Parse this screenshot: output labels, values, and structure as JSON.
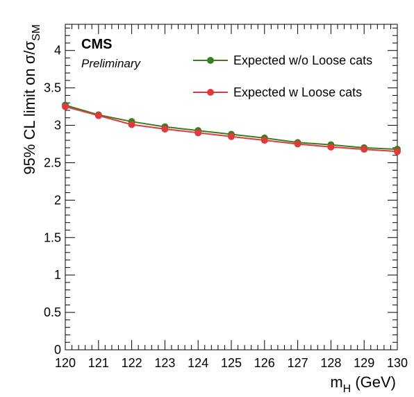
{
  "chart_data": {
    "type": "line",
    "experiment_label": "CMS",
    "status_label": "Preliminary",
    "xlabel": "m",
    "xlabel_sub": "H",
    "xlabel_unit": " (GeV)",
    "ylabel": "95% CL limit on  σ/σ",
    "ylabel_sub": "SM",
    "xlim": [
      120,
      130
    ],
    "ylim": [
      0,
      4.35
    ],
    "x_ticks": [
      120,
      121,
      122,
      123,
      124,
      125,
      126,
      127,
      128,
      129,
      130
    ],
    "y_ticks": [
      0,
      0.5,
      1,
      1.5,
      2,
      2.5,
      3,
      3.5,
      4
    ],
    "x_minor_step": 0.2,
    "y_minor_step": 0.1,
    "grid": false,
    "legend_position": "top-right",
    "x": [
      120,
      121,
      122,
      123,
      124,
      125,
      126,
      127,
      128,
      129,
      130
    ],
    "series": [
      {
        "name": "Expected w/o Loose cats",
        "color": "#3a7d1e",
        "values": [
          3.27,
          3.14,
          3.05,
          2.98,
          2.93,
          2.88,
          2.83,
          2.77,
          2.74,
          2.7,
          2.68
        ]
      },
      {
        "name": "Expected w Loose cats",
        "color": "#e03a3e",
        "values": [
          3.25,
          3.13,
          3.01,
          2.95,
          2.9,
          2.85,
          2.8,
          2.75,
          2.71,
          2.68,
          2.65
        ]
      }
    ]
  }
}
